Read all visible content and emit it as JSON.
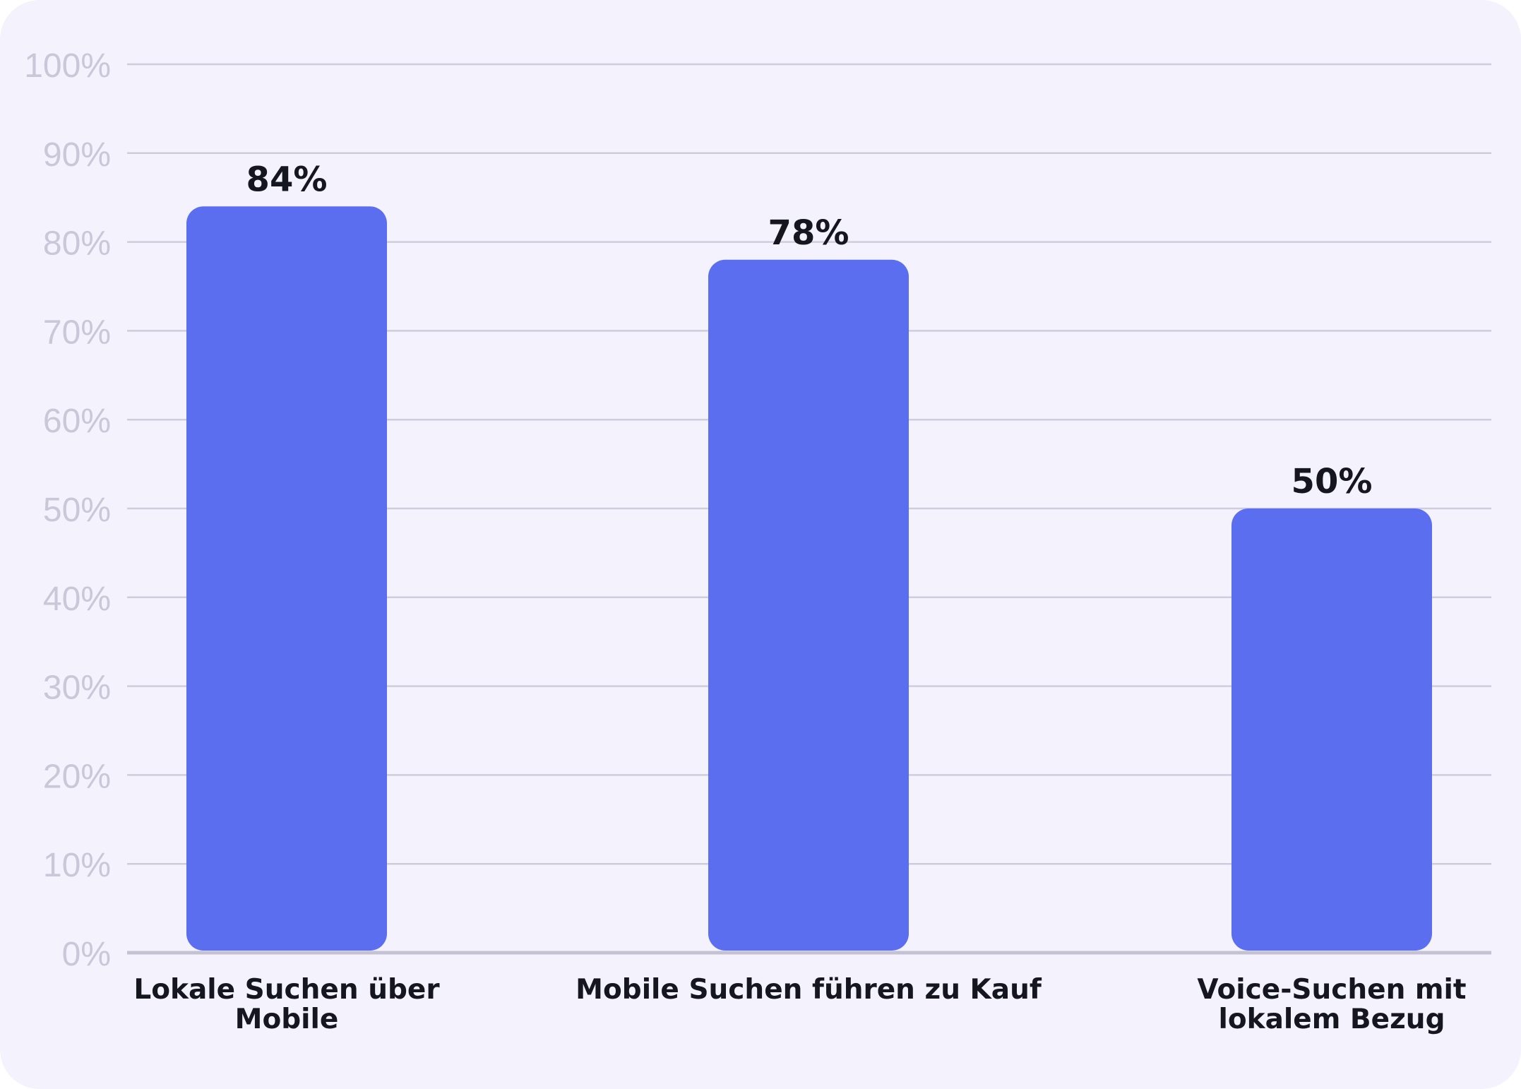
{
  "chart_data": {
    "type": "bar",
    "categories": [
      [
        "Lokale Suchen über",
        "Mobile"
      ],
      [
        "Mobile Suchen führen zu Kauf"
      ],
      [
        "Voice-Suchen mit",
        "lokalem Bezug"
      ]
    ],
    "values": [
      84,
      78,
      50
    ],
    "value_labels": [
      "84%",
      "78%",
      "50%"
    ],
    "ylim": [
      0,
      100
    ],
    "yticks": [
      0,
      10,
      20,
      30,
      40,
      50,
      60,
      70,
      80,
      90,
      100
    ],
    "ytick_labels": [
      "0%",
      "10%",
      "20%",
      "30%",
      "40%",
      "50%",
      "60%",
      "70%",
      "80%",
      "90%",
      "100%"
    ],
    "grid": true,
    "colors": {
      "bar": "#5b6ef0",
      "grid": "#cfcddd",
      "axis": "#c4c2d2",
      "background": "#f3f2fd"
    }
  }
}
